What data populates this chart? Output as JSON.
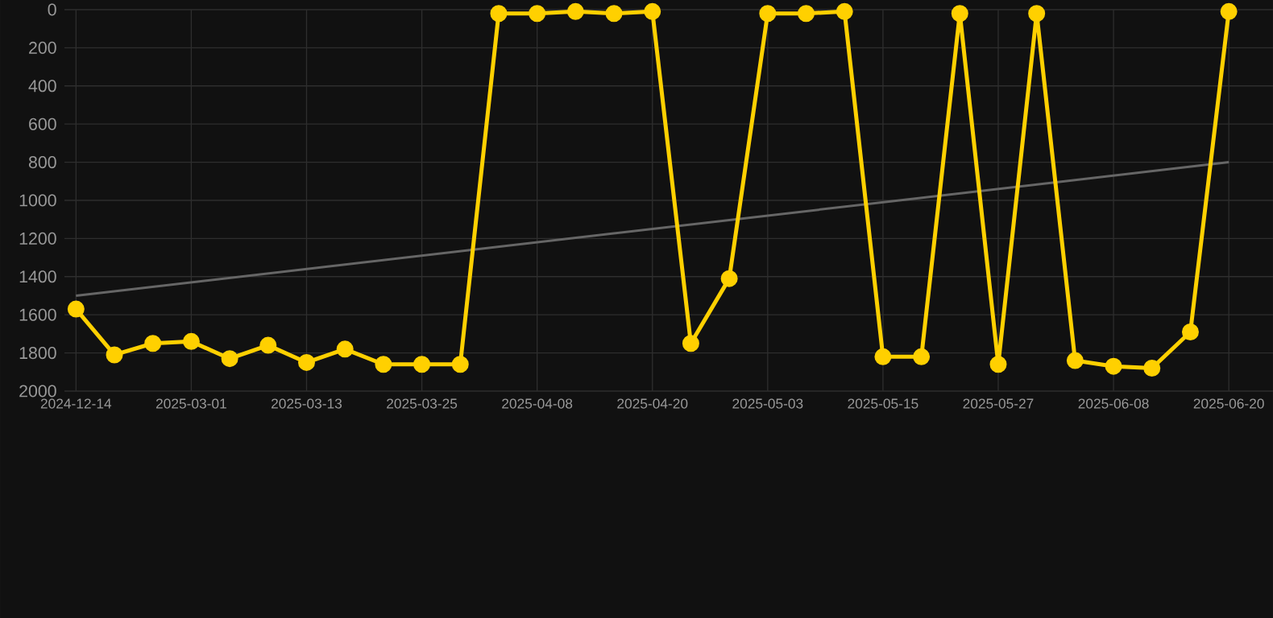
{
  "chart_data": {
    "type": "line",
    "categories": [
      "2024-12-14",
      null,
      null,
      "2025-03-01",
      null,
      null,
      "2025-03-13",
      null,
      null,
      "2025-03-25",
      null,
      null,
      "2025-04-08",
      null,
      null,
      "2025-04-20",
      null,
      null,
      "2025-05-03",
      null,
      null,
      "2025-05-15",
      null,
      null,
      "2025-05-27",
      null,
      null,
      "2025-06-08",
      null,
      null,
      "2025-06-20"
    ],
    "series": [
      {
        "color": "#ffd000",
        "marker": "circle",
        "values": [
          1570,
          1810,
          1750,
          1740,
          1830,
          1760,
          1850,
          1780,
          1860,
          1860,
          1860,
          20,
          20,
          10,
          20,
          10,
          1750,
          1410,
          20,
          20,
          10,
          1820,
          1820,
          20,
          1860,
          20,
          1840,
          1870,
          1880,
          1690,
          10
        ]
      },
      {
        "color": "#666666",
        "marker": "none",
        "values": [
          1500,
          null,
          null,
          null,
          null,
          null,
          null,
          null,
          null,
          null,
          null,
          null,
          null,
          null,
          null,
          null,
          null,
          null,
          null,
          null,
          null,
          null,
          null,
          null,
          null,
          null,
          null,
          null,
          null,
          null,
          800
        ]
      }
    ],
    "ylim": [
      2000,
      0
    ],
    "yticks": [
      0,
      200,
      400,
      600,
      800,
      1000,
      1200,
      1400,
      1600,
      1800,
      2000
    ],
    "grid": true
  }
}
